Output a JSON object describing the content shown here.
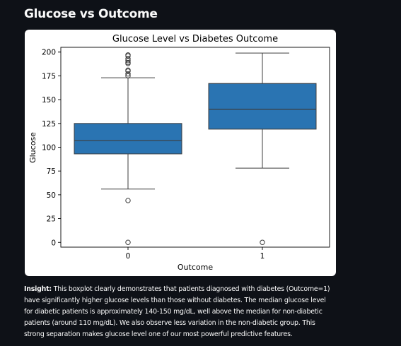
{
  "page": {
    "heading": "Glucose vs Outcome"
  },
  "insight": {
    "label": "Insight:",
    "text": "This boxplot clearly demonstrates that patients diagnosed with diabetes (Outcome=1) have significantly higher glucose levels than those without diabetes. The median glucose level for diabetic patients is approximately 140-150 mg/dL, well above the median for non-diabetic patients (around 110 mg/dL). We also observe less variation in the non-diabetic group. This strong separation makes glucose level one of our most powerful predictive features."
  },
  "chart_data": {
    "type": "boxplot",
    "title": "Glucose Level vs Diabetes Outcome",
    "xlabel": "Outcome",
    "ylabel": "Glucose",
    "categories": [
      "0",
      "1"
    ],
    "ylim": [
      -5,
      205
    ],
    "yticks": [
      0,
      25,
      50,
      75,
      100,
      125,
      150,
      175,
      200
    ],
    "grid": false,
    "box_color": "#2a74b2",
    "line_color": "#3d3d3d",
    "boxes": [
      {
        "category": "0",
        "whisker_low": 56,
        "q1": 93,
        "median": 107,
        "q3": 125,
        "whisker_high": 173,
        "outliers": [
          0,
          44,
          175,
          177,
          180,
          181,
          188,
          189,
          191,
          193,
          196,
          197
        ]
      },
      {
        "category": "1",
        "whisker_low": 78,
        "q1": 119,
        "median": 140,
        "q3": 167,
        "whisker_high": 199,
        "outliers": [
          0
        ]
      }
    ]
  }
}
